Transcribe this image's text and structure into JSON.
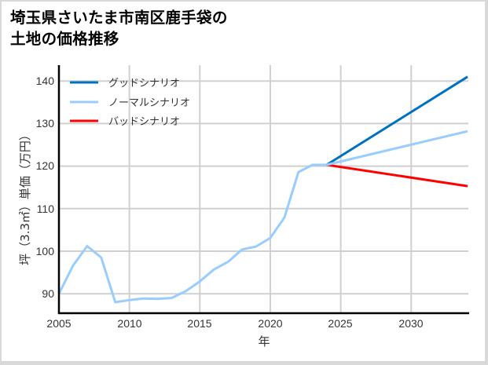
{
  "title_line1": "埼玉県さいたま市南区鹿手袋の",
  "title_line2": "土地の価格推移",
  "chart_data": {
    "type": "line",
    "title": "埼玉県さいたま市南区鹿手袋の土地の価格推移",
    "xlabel": "年",
    "ylabel": "坪（3.3㎡）単価（万円）",
    "xlim": [
      2005,
      2034
    ],
    "ylim": [
      85.5,
      142.5
    ],
    "grid": true,
    "legend_position": "upper left",
    "x_ticks": [
      2005,
      2010,
      2015,
      2020,
      2025,
      2030
    ],
    "y_ticks": [
      90,
      100,
      110,
      120,
      130,
      140
    ],
    "historical": {
      "x": [
        2005,
        2006,
        2007,
        2008,
        2009,
        2010,
        2011,
        2012,
        2013,
        2014,
        2015,
        2016,
        2017,
        2018,
        2019,
        2020,
        2021,
        2022,
        2023,
        2024
      ],
      "values": [
        90.0,
        96.6,
        101.2,
        98.5,
        88.0,
        88.5,
        88.9,
        88.8,
        89.0,
        90.6,
        92.9,
        95.7,
        97.5,
        100.4,
        101.1,
        103.1,
        107.9,
        118.6,
        120.3,
        120.3
      ]
    },
    "series": [
      {
        "name": "グッドシナリオ",
        "color": "#0070c0",
        "x": [
          2024,
          2034
        ],
        "values": [
          120.3,
          141.0
        ]
      },
      {
        "name": "ノーマルシナリオ",
        "color": "#99ccff",
        "x": [
          2024,
          2034
        ],
        "values": [
          120.3,
          128.2
        ]
      },
      {
        "name": "バッドシナリオ",
        "color": "#ff0000",
        "x": [
          2024,
          2034
        ],
        "values": [
          120.3,
          115.3
        ]
      }
    ]
  },
  "legend": {
    "good": "グッドシナリオ",
    "normal": "ノーマルシナリオ",
    "bad": "バッドシナリオ"
  },
  "axes": {
    "xlabel": "年",
    "ylabel": "坪（3.3㎡）単価（万円）",
    "x_tick_labels": [
      "2005",
      "2010",
      "2015",
      "2020",
      "2025",
      "2030"
    ],
    "y_tick_labels": [
      "140",
      "130",
      "120",
      "110",
      "100",
      "90"
    ]
  },
  "colors": {
    "good": "#0070c0",
    "normal": "#99ccff",
    "bad": "#ff0000",
    "grid": "#d0d0d0"
  }
}
